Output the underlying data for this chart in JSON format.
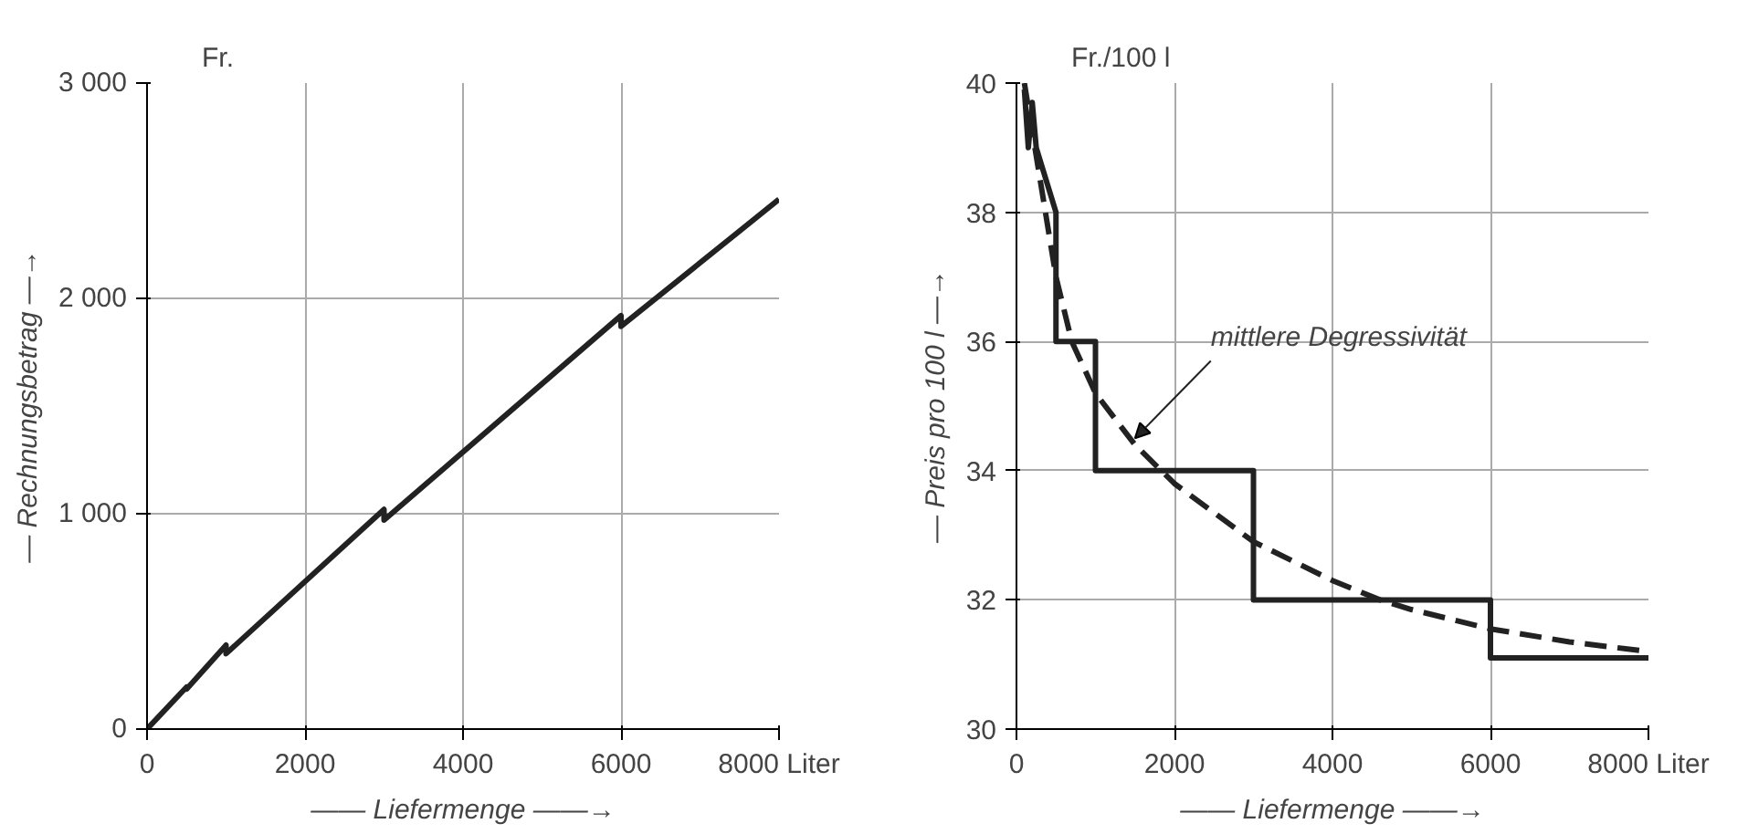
{
  "chart_data": [
    {
      "type": "line",
      "annotations": [
        "Fr."
      ],
      "xlabel": "—— Liefermenge ——→",
      "ylabel": "— Rechnungsbetrag —→",
      "xlim": [
        0,
        8000
      ],
      "ylim": [
        0,
        3000
      ],
      "xticks": [
        0,
        2000,
        4000,
        6000,
        {
          "value": 8000,
          "label": "8000 Liter"
        }
      ],
      "yticks": [
        0,
        {
          "value": 1000,
          "label": "1 000"
        },
        {
          "value": 2000,
          "label": "2 000"
        },
        {
          "value": 3000,
          "label": "3 000"
        }
      ],
      "grid": true,
      "line_style": "solid",
      "series": [
        {
          "color": "#222222",
          "x": [
            0,
            500,
            500,
            1000,
            1000,
            3000,
            3000,
            6000,
            6000,
            8000
          ],
          "values": [
            0,
            195,
            185,
            390,
            350,
            1020,
            970,
            1920,
            1870,
            2460
          ]
        }
      ]
    },
    {
      "type": "line",
      "annotations": [
        "Fr./100 l",
        {
          "text": "mittlere  Degressivität",
          "x": 1500,
          "y": 34.5
        }
      ],
      "xlabel": "—— Liefermenge ——→",
      "ylabel": "— Preis pro 100 l —→",
      "xlim": [
        0,
        8000
      ],
      "ylim": [
        30,
        40
      ],
      "xticks": [
        0,
        2000,
        4000,
        6000,
        {
          "value": 8000,
          "label": "8000 Liter"
        }
      ],
      "yticks": [
        30,
        32,
        34,
        36,
        38,
        40
      ],
      "grid": true,
      "series": [
        {
          "color": "#222222",
          "line_style": "solid",
          "x": [
            100,
            150,
            200,
            250,
            500,
            500,
            1000,
            1000,
            3000,
            3000,
            6000,
            6000,
            8000
          ],
          "values": [
            39.9,
            39.0,
            39.7,
            39.0,
            38.0,
            36.0,
            36.0,
            34.0,
            34.0,
            32.0,
            32.0,
            31.1,
            31.1
          ]
        },
        {
          "color": "#222222",
          "line_style": "dashed",
          "x": [
            100,
            300,
            500,
            700,
            1000,
            1500,
            2000,
            3000,
            4000,
            4600,
            5000,
            6000,
            7000,
            8000
          ],
          "values": [
            40.0,
            38.5,
            37.0,
            36.0,
            35.2,
            34.4,
            33.8,
            32.9,
            32.3,
            32.0,
            31.85,
            31.55,
            31.35,
            31.2
          ]
        }
      ]
    }
  ]
}
